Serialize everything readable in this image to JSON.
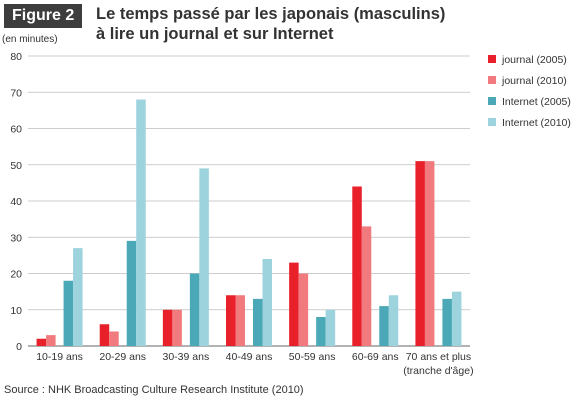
{
  "header": {
    "figure_label": "Figure 2",
    "title_line1": "Le temps passé par les japonais (masculins)",
    "title_line2": "à lire un journal et sur Internet"
  },
  "unit_label": "(en minutes)",
  "source": "Source : NHK Broadcasting Culture Research Institute (2010)",
  "chart_data": {
    "type": "bar",
    "title": "Le temps passé par les japonais (masculins) à lire un journal et sur Internet",
    "ylabel": "(en minutes)",
    "xlabel": "(tranche d'âge)",
    "ylim": [
      0,
      80
    ],
    "yticks": [
      0,
      10,
      20,
      30,
      40,
      50,
      60,
      70,
      80
    ],
    "grid": true,
    "legend_position": "right",
    "categories": [
      "10-19 ans",
      "20-29 ans",
      "30-39 ans",
      "40-49 ans",
      "50-59 ans",
      "60-69 ans",
      "70 ans et plus"
    ],
    "series": [
      {
        "name": "journal (2005)",
        "color": "#e8202a",
        "values": [
          2,
          6,
          10,
          14,
          23,
          44,
          51
        ]
      },
      {
        "name": "journal (2010)",
        "color": "#f07a7d",
        "values": [
          3,
          4,
          10,
          14,
          20,
          33,
          51
        ]
      },
      {
        "name": "Internet (2005)",
        "color": "#4aa8b7",
        "values": [
          18,
          29,
          20,
          13,
          8,
          11,
          13
        ]
      },
      {
        "name": "Internet (2010)",
        "color": "#9dd3dd",
        "values": [
          27,
          68,
          49,
          24,
          10,
          14,
          15
        ]
      }
    ]
  }
}
